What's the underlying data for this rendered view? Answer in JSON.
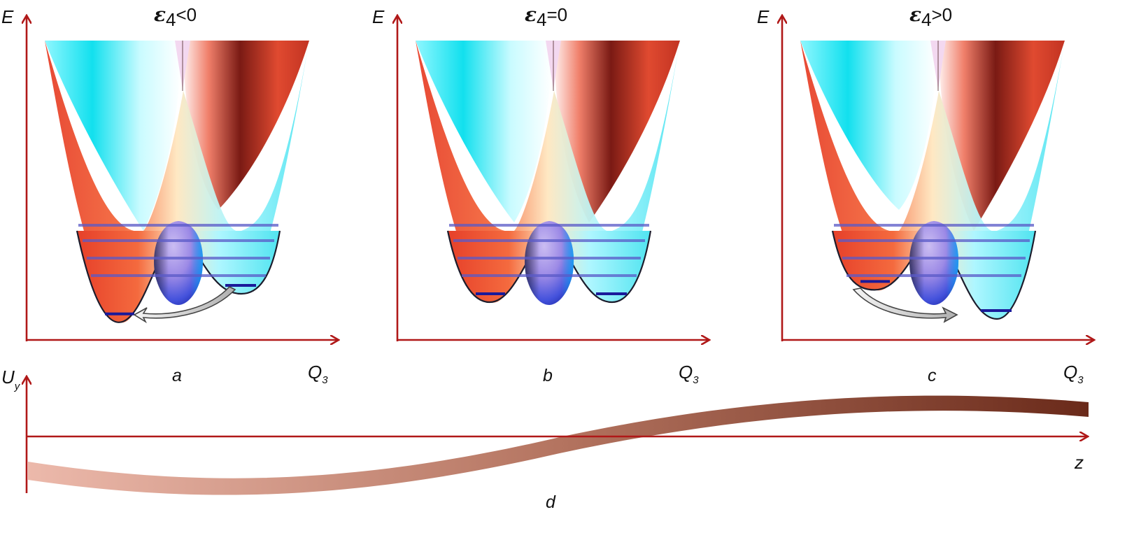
{
  "panels": [
    {
      "id": "a",
      "label": "a",
      "title_symbol": "ε",
      "title_subscript": "4",
      "title_relation": "<0",
      "y_axis": "E",
      "x_axis": "Q",
      "x_axis_subscript": "3",
      "asymmetry": "left-lower"
    },
    {
      "id": "b",
      "label": "b",
      "title_symbol": "ε",
      "title_subscript": "4",
      "title_relation": "=0",
      "y_axis": "E",
      "x_axis": "Q",
      "x_axis_subscript": "3",
      "asymmetry": "symmetric"
    },
    {
      "id": "c",
      "label": "c",
      "title_symbol": "ε",
      "title_subscript": "4",
      "title_relation": ">0",
      "y_axis": "E",
      "x_axis": "Q",
      "x_axis_subscript": "3",
      "asymmetry": "right-lower"
    }
  ],
  "bottom_panel": {
    "label": "d",
    "y_axis": "U",
    "y_axis_subscript": "y",
    "x_axis": "z",
    "curve": "increasing sigmoid, negative to positive"
  },
  "colors": {
    "axis": "#b01818",
    "cyan_surface": "#12e0ee",
    "red_surface": "#d23a22",
    "dark_red": "#6e1410",
    "level_line": "#5a5ac8",
    "level_line_dark": "#1a1a9a",
    "barrier_top": "#b8a8ea",
    "barrier_bottom": "#3a4ad8",
    "arrow_fill": "#d0d0d0",
    "band_start": "#e9b3a6",
    "band_end": "#6e2c1c"
  }
}
